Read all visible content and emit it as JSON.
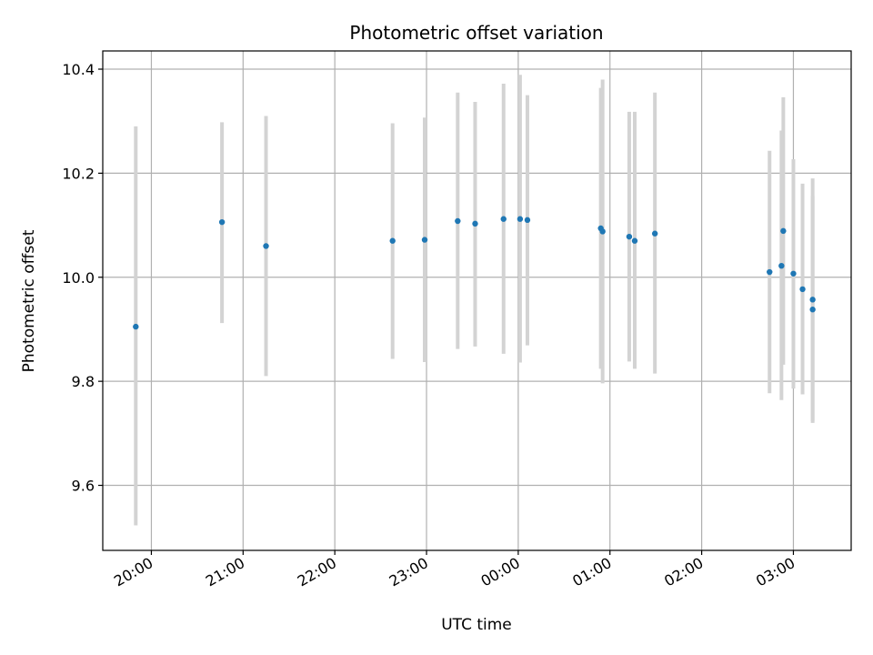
{
  "chart_data": {
    "type": "scatter",
    "title": "Photometric offset variation",
    "xlabel": "UTC time",
    "ylabel": "Photometric offset",
    "x_unit": "hours since 20:00 UTC",
    "xlim": [
      -0.53,
      7.63
    ],
    "ylim": [
      9.475,
      10.435
    ],
    "x_ticks": [
      {
        "value": 0,
        "label": "20:00"
      },
      {
        "value": 1,
        "label": "21:00"
      },
      {
        "value": 2,
        "label": "22:00"
      },
      {
        "value": 3,
        "label": "23:00"
      },
      {
        "value": 4,
        "label": "00:00"
      },
      {
        "value": 5,
        "label": "01:00"
      },
      {
        "value": 6,
        "label": "02:00"
      },
      {
        "value": 7,
        "label": "03:00"
      }
    ],
    "y_ticks": [
      {
        "value": 9.6,
        "label": "9.6"
      },
      {
        "value": 9.8,
        "label": "9.8"
      },
      {
        "value": 10.0,
        "label": "10.0"
      },
      {
        "value": 10.2,
        "label": "10.2"
      },
      {
        "value": 10.4,
        "label": "10.4"
      }
    ],
    "grid": true,
    "colors": {
      "points": "#1f77b4",
      "error_bars": "#d3d3d3",
      "grid": "#b0b0b0"
    },
    "points": [
      {
        "x": -0.17,
        "y": 9.905,
        "lo": 9.523,
        "hi": 10.29
      },
      {
        "x": 0.77,
        "y": 10.106,
        "lo": 9.912,
        "hi": 10.298
      },
      {
        "x": 1.25,
        "y": 10.06,
        "lo": 9.81,
        "hi": 10.31
      },
      {
        "x": 2.63,
        "y": 10.07,
        "lo": 9.843,
        "hi": 10.296
      },
      {
        "x": 2.98,
        "y": 10.072,
        "lo": 9.837,
        "hi": 10.307
      },
      {
        "x": 3.34,
        "y": 10.108,
        "lo": 9.862,
        "hi": 10.355
      },
      {
        "x": 3.53,
        "y": 10.103,
        "lo": 9.867,
        "hi": 10.337
      },
      {
        "x": 3.84,
        "y": 10.112,
        "lo": 9.853,
        "hi": 10.372
      },
      {
        "x": 4.02,
        "y": 10.112,
        "lo": 9.836,
        "hi": 10.389
      },
      {
        "x": 4.1,
        "y": 10.11,
        "lo": 9.869,
        "hi": 10.35
      },
      {
        "x": 4.9,
        "y": 10.094,
        "lo": 9.824,
        "hi": 10.364
      },
      {
        "x": 4.92,
        "y": 10.088,
        "lo": 9.796,
        "hi": 10.38
      },
      {
        "x": 5.21,
        "y": 10.078,
        "lo": 9.838,
        "hi": 10.318
      },
      {
        "x": 5.27,
        "y": 10.07,
        "lo": 9.824,
        "hi": 10.318
      },
      {
        "x": 5.49,
        "y": 10.084,
        "lo": 9.815,
        "hi": 10.355
      },
      {
        "x": 6.74,
        "y": 10.01,
        "lo": 9.777,
        "hi": 10.243
      },
      {
        "x": 6.87,
        "y": 10.022,
        "lo": 9.764,
        "hi": 10.282
      },
      {
        "x": 6.89,
        "y": 10.089,
        "lo": 9.832,
        "hi": 10.346
      },
      {
        "x": 7.0,
        "y": 10.007,
        "lo": 9.786,
        "hi": 10.227
      },
      {
        "x": 7.1,
        "y": 9.977,
        "lo": 9.775,
        "hi": 10.18
      },
      {
        "x": 7.21,
        "y": 9.957,
        "lo": 9.724,
        "hi": 10.19
      },
      {
        "x": 7.21,
        "y": 9.938,
        "lo": 9.72,
        "hi": 10.156
      }
    ]
  }
}
